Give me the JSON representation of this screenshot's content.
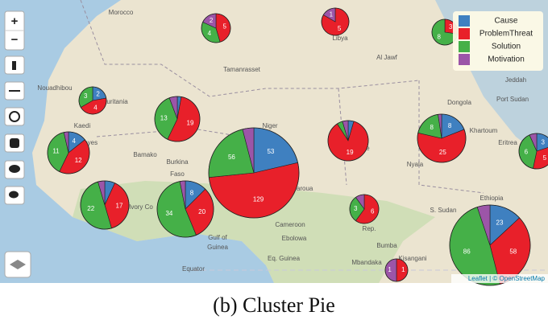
{
  "caption": "(b) Cluster Pie",
  "controls": {
    "zoom_in": "+",
    "zoom_out": "−"
  },
  "attribution": "Leaflet | © OpenStreetMap",
  "legend": [
    {
      "label": "Cause",
      "color": "#3f80c0"
    },
    {
      "label": "ProblemThreat",
      "color": "#e8202a"
    },
    {
      "label": "Solution",
      "color": "#45b048"
    },
    {
      "label": "Motivation",
      "color": "#9c55a8"
    }
  ],
  "places": [
    "Morocco",
    "Libya",
    "Tamanrasset",
    "Al Jawf",
    "Nouadhibou",
    "Mauritania",
    "Jeddah",
    "Port Sudan",
    "Dongola",
    "Kaedi",
    "Kayes",
    "Bamako",
    "Burkina",
    "Faso",
    "Niger",
    "Khartoum",
    "Eritrea",
    "Abeche",
    "Nyala",
    "Garoua",
    "Cameroon",
    "Ebolowa",
    "Eq. Guinea",
    "Gulf of",
    "Guinea",
    "Equator",
    "Mbandaka",
    "Bumba",
    "Kisangani",
    "S. Sudan",
    "Ethiopia",
    "Ivory Co",
    "Rep."
  ],
  "clusters": [
    {
      "values": [
        0,
        5,
        4,
        2
      ]
    },
    {
      "values": [
        0,
        5,
        0,
        1
      ]
    },
    {
      "values": [
        0,
        3,
        8,
        0
      ]
    },
    {
      "values": [
        2,
        4,
        3,
        0
      ]
    },
    {
      "values": [
        1,
        19,
        13,
        2
      ]
    },
    {
      "values": [
        4,
        12,
        11,
        1
      ]
    },
    {
      "values": [
        1,
        19,
        1,
        1
      ]
    },
    {
      "values": [
        8,
        25,
        8,
        1
      ]
    },
    {
      "values": [
        3,
        5,
        6,
        1
      ]
    },
    {
      "values": [
        53,
        129,
        56,
        10
      ]
    },
    {
      "values": [
        3,
        17,
        22,
        2
      ]
    },
    {
      "values": [
        8,
        20,
        34,
        2
      ]
    },
    {
      "values": [
        0,
        6,
        3,
        1
      ]
    },
    {
      "values": [
        0,
        1,
        0,
        1
      ]
    },
    {
      "values": [
        23,
        58,
        86,
        9
      ]
    }
  ]
}
